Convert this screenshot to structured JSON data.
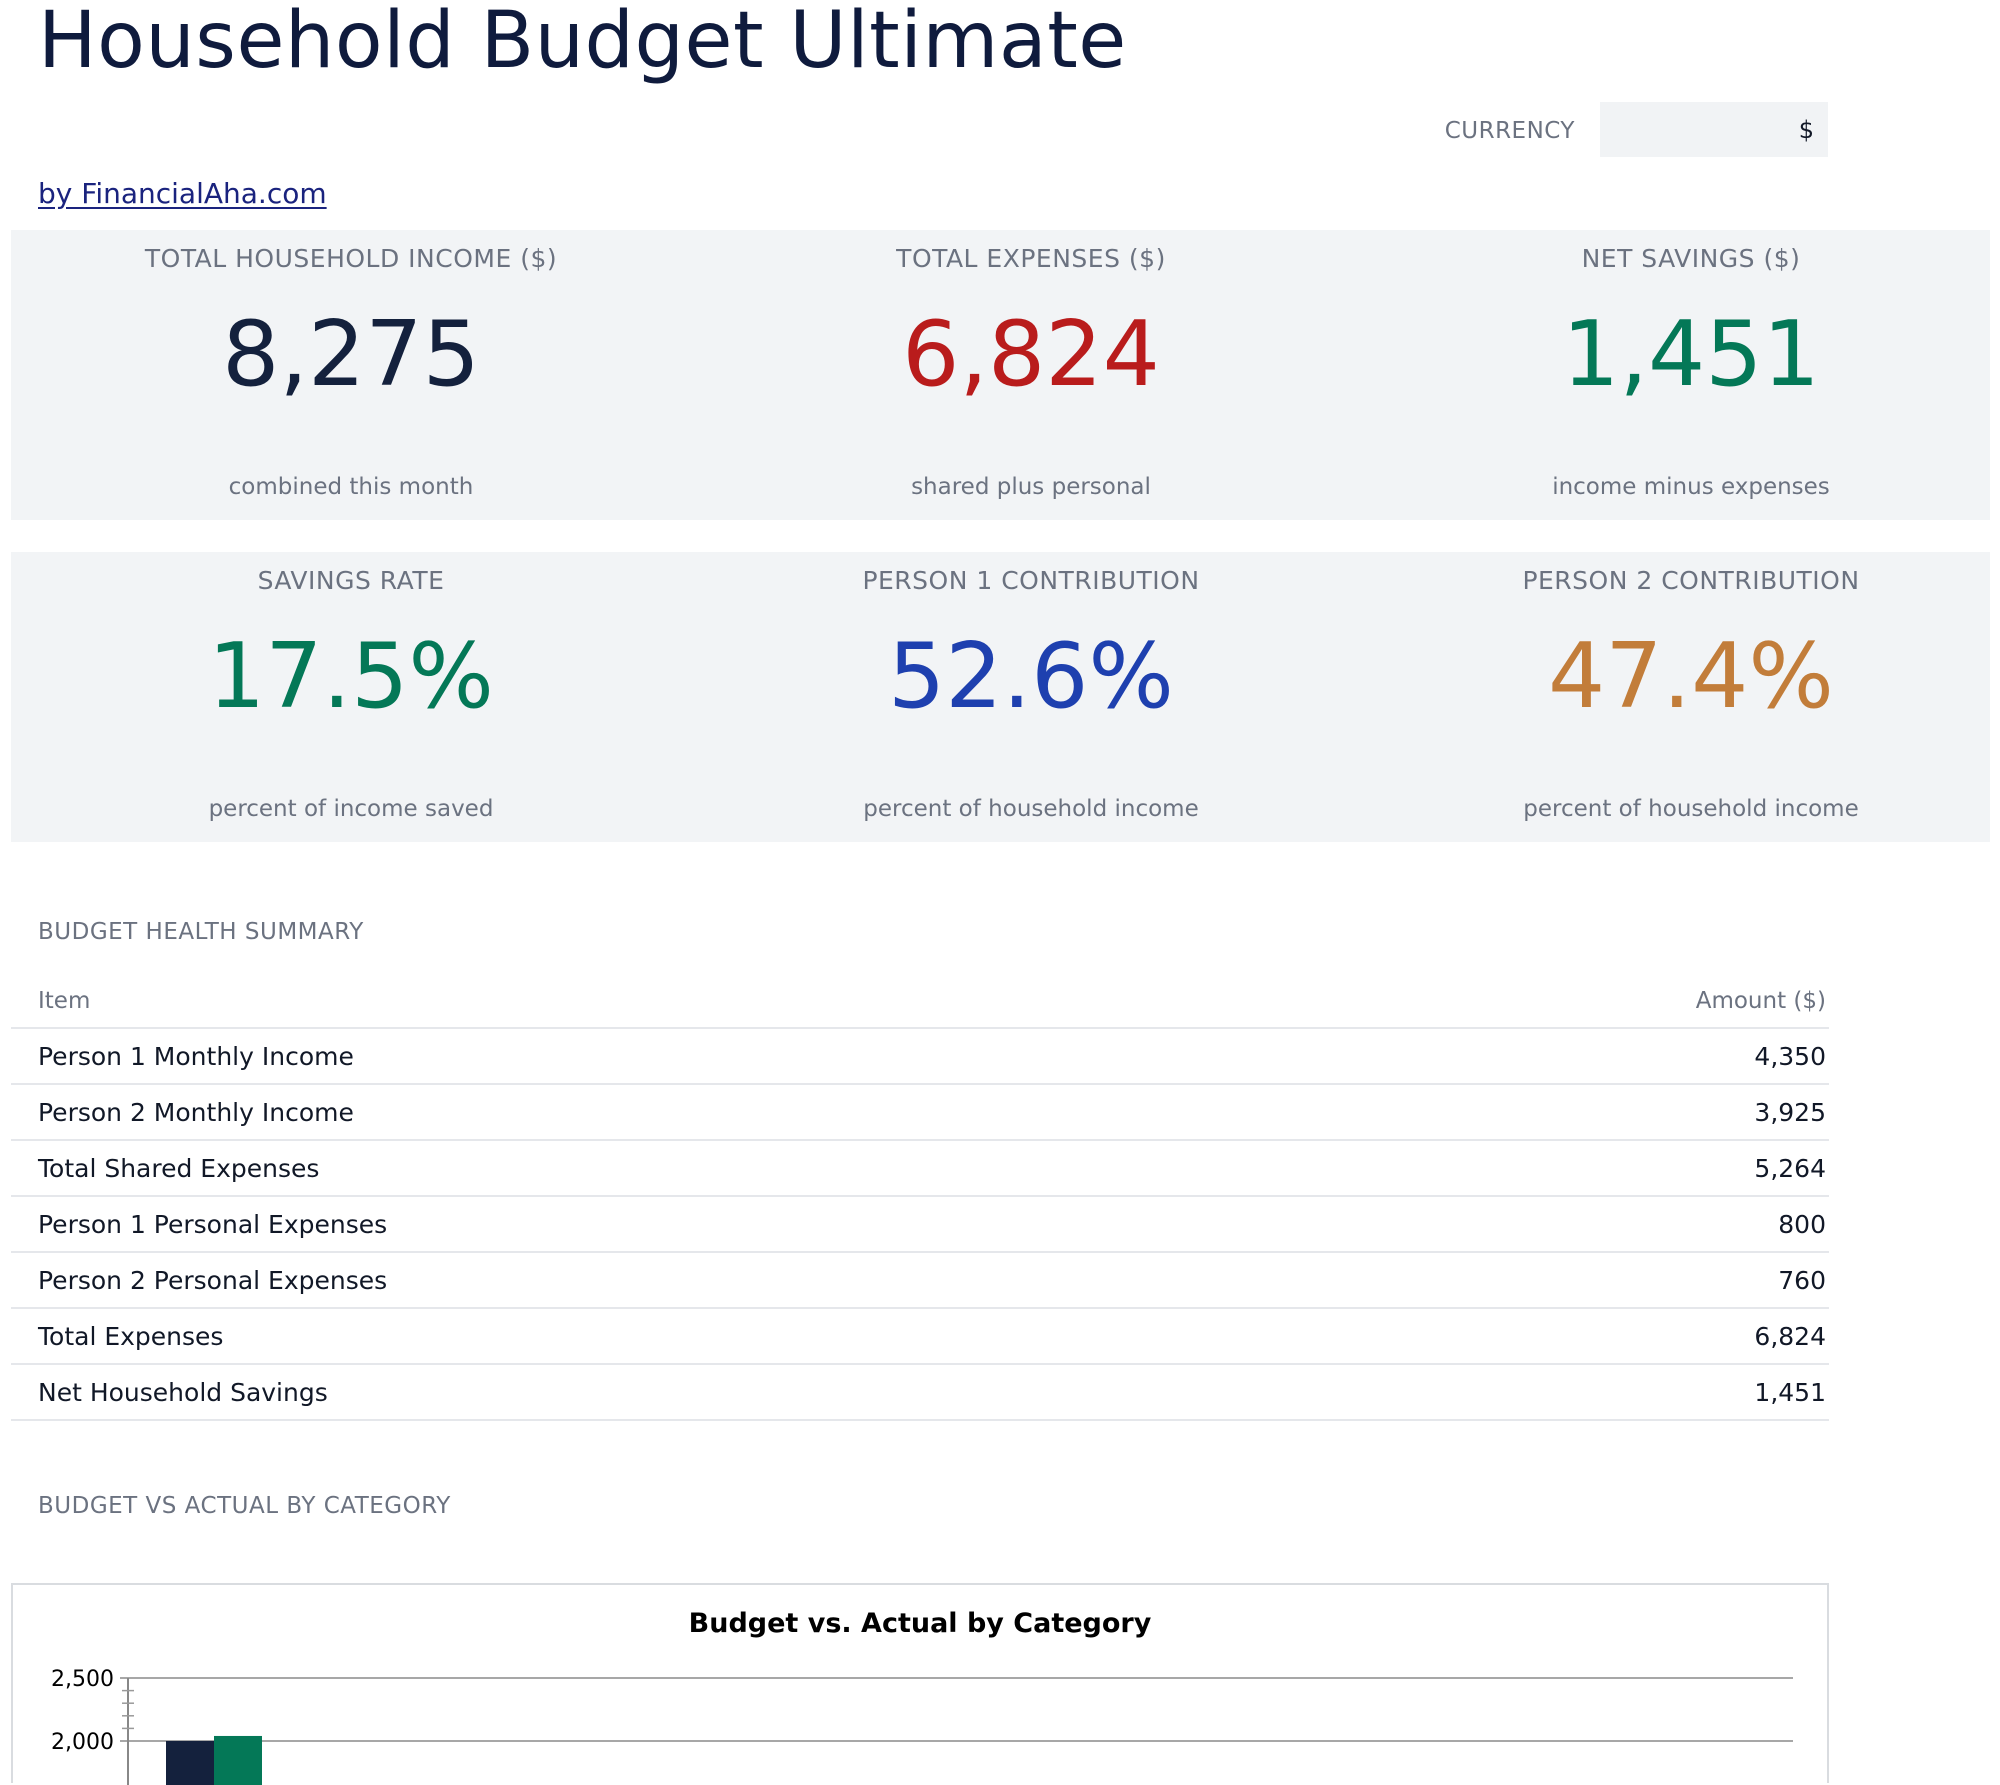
{
  "header": {
    "title": "Household Budget Ultimate",
    "currency_label": "CURRENCY",
    "currency_value": "$",
    "byline": "by FinancialAha.com"
  },
  "kpis_row1": [
    {
      "label": "TOTAL HOUSEHOLD INCOME ($)",
      "value": "8,275",
      "sub": "combined this month",
      "color": "#14213d"
    },
    {
      "label": "TOTAL EXPENSES ($)",
      "value": "6,824",
      "sub": "shared plus personal",
      "color": "#b91c1c"
    },
    {
      "label": "NET SAVINGS ($)",
      "value": "1,451",
      "sub": "income minus expenses",
      "color": "#047857"
    }
  ],
  "kpis_row2": [
    {
      "label": "SAVINGS RATE",
      "value": "17.5%",
      "sub": "percent of income saved",
      "color": "#047857"
    },
    {
      "label": "PERSON 1 CONTRIBUTION",
      "value": "52.6%",
      "sub": "percent of household income",
      "color": "#1e40af"
    },
    {
      "label": "PERSON 2 CONTRIBUTION",
      "value": "47.4%",
      "sub": "percent of household income",
      "color": "#c27d3a"
    }
  ],
  "summary": {
    "title": "BUDGET HEALTH SUMMARY",
    "columns": [
      "Item",
      "Amount ($)"
    ],
    "rows": [
      {
        "item": "Person 1 Monthly Income",
        "amount": "4,350"
      },
      {
        "item": "Person 2 Monthly Income",
        "amount": "3,925"
      },
      {
        "item": "Total Shared Expenses",
        "amount": "5,264"
      },
      {
        "item": "Person 1 Personal Expenses",
        "amount": "800"
      },
      {
        "item": "Person 2 Personal Expenses",
        "amount": "760"
      },
      {
        "item": "Total Expenses",
        "amount": "6,824"
      },
      {
        "item": "Net Household Savings",
        "amount": "1,451"
      }
    ]
  },
  "budget_section": {
    "title": "BUDGET VS ACTUAL BY CATEGORY"
  },
  "chart_data": {
    "type": "bar",
    "title": "Budget vs. Actual by Category",
    "yticks": [
      "2,500",
      "2,000"
    ],
    "ylim": [
      0,
      2500
    ],
    "categories": [
      ""
    ],
    "series": [
      {
        "values": [
          2000
        ],
        "color": "#14213d"
      },
      {
        "values": [
          2040
        ],
        "color": "#047857"
      }
    ],
    "grid": true
  }
}
